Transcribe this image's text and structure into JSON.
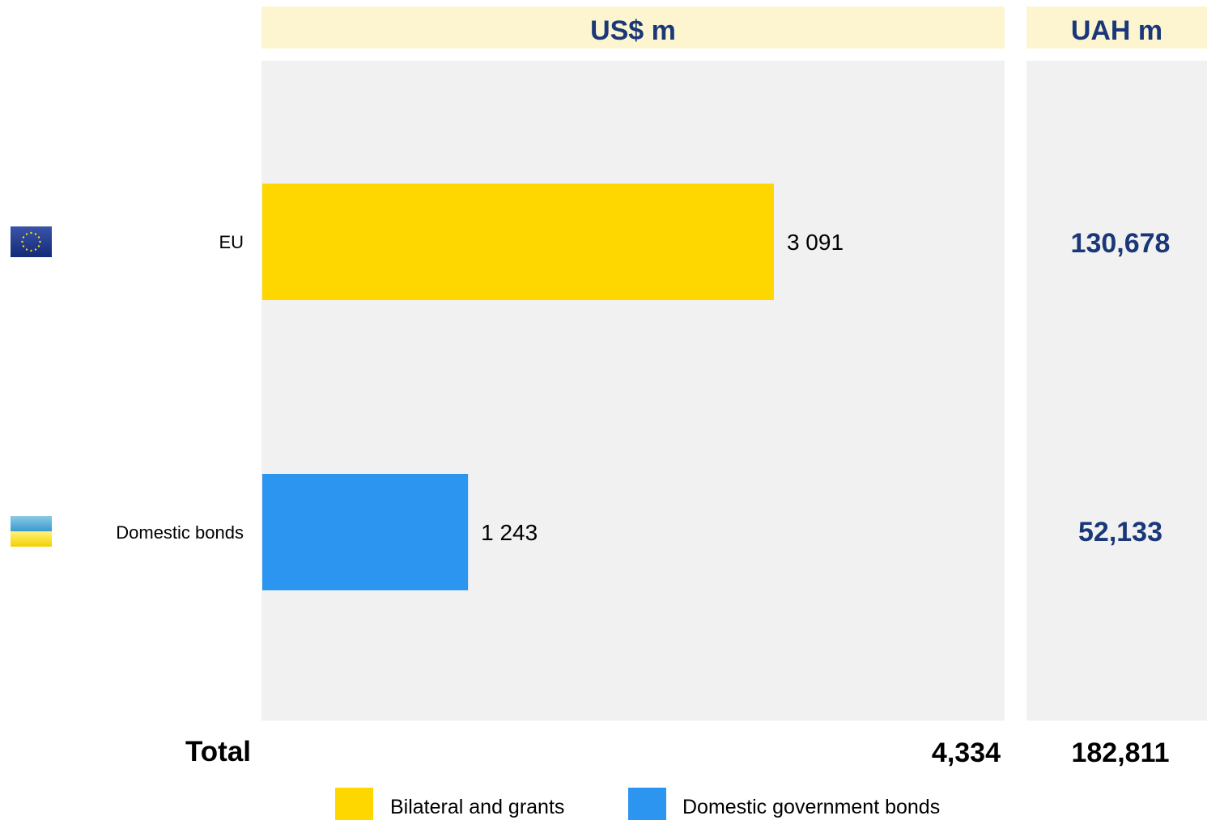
{
  "headers": {
    "usd": "US$ m",
    "uah": "UAH m"
  },
  "colors": {
    "eu_bar": "#ffd700",
    "domestic_bar": "#2b95f0",
    "header_bg": "#fdf5d0",
    "panel_bg": "#f1f1f1",
    "accent_text": "#1a3878"
  },
  "chart_data": {
    "type": "bar",
    "orientation": "horizontal",
    "categories": [
      "EU",
      "Domestic bonds"
    ],
    "values": [
      3091,
      1243
    ],
    "value_labels": [
      "3 091",
      "1 243"
    ],
    "uah_values": [
      "130,678",
      "52,133"
    ],
    "series": [
      {
        "name": "Bilateral and grants",
        "values": [
          3091,
          null
        ]
      },
      {
        "name": "Domestic government bonds",
        "values": [
          null,
          1243
        ]
      }
    ],
    "xlim": [
      0,
      4490
    ],
    "grid": false,
    "legend": "bottom"
  },
  "rows": [
    {
      "flag": "eu-flag-icon"
    },
    {
      "flag": "ukraine-flag-icon"
    }
  ],
  "totals": {
    "label": "Total",
    "usd": "4,334",
    "uah": "182,811"
  },
  "legend": [
    {
      "label": "Bilateral and grants"
    },
    {
      "label": "Domestic government bonds"
    }
  ]
}
